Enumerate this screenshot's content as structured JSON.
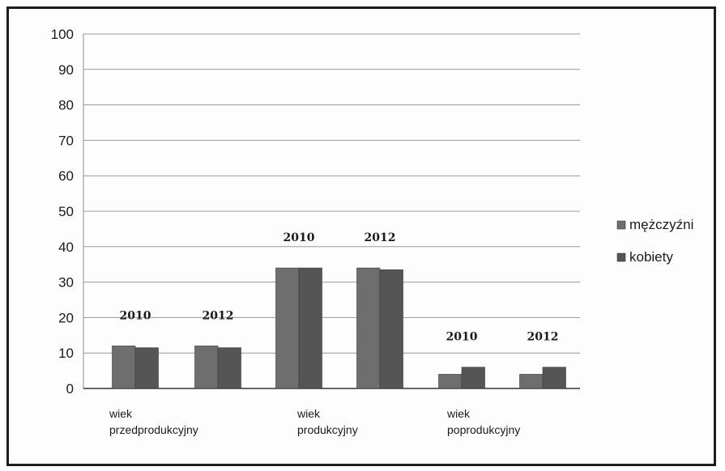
{
  "chart_data": {
    "type": "bar",
    "ylim": [
      0,
      100
    ],
    "yticks": [
      0,
      10,
      20,
      30,
      40,
      50,
      60,
      70,
      80,
      90,
      100
    ],
    "grid": true,
    "legend_position": "right",
    "groups": [
      {
        "category": [
          "wiek",
          "przedprodukcyjny"
        ],
        "years": [
          "2010",
          "2012"
        ]
      },
      {
        "category": [
          "wiek",
          "produkcyjny"
        ],
        "years": [
          "2010",
          "2012"
        ]
      },
      {
        "category": [
          "wiek",
          "poprodukcyjny"
        ],
        "years": [
          "2010",
          "2012"
        ]
      }
    ],
    "series": [
      {
        "name": "mężczyźni",
        "color": "#6e6e6e",
        "values": [
          12,
          12,
          34,
          34,
          4,
          4
        ]
      },
      {
        "name": "kobiety",
        "color": "#555555",
        "values": [
          11.5,
          11.5,
          34,
          33.5,
          6,
          6
        ]
      }
    ]
  }
}
